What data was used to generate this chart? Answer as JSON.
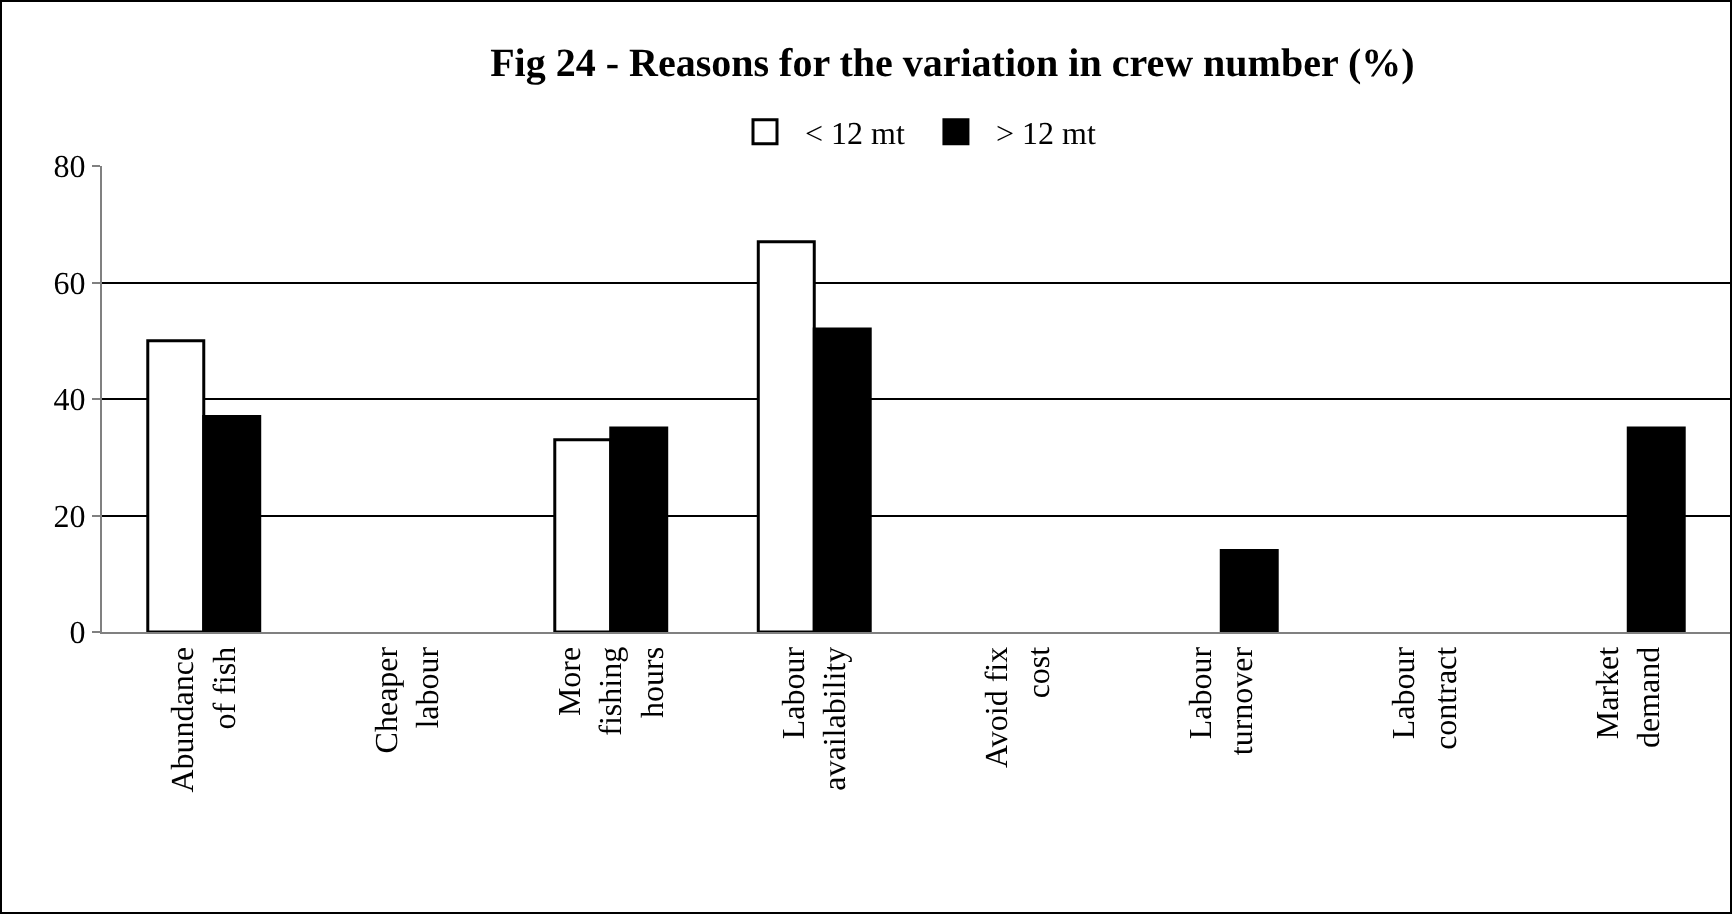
{
  "chart_data": {
    "type": "bar",
    "title": "Fig 24 - Reasons for the variation in crew number (%)",
    "categories": [
      "Abundance of fish",
      "Cheaper labour",
      "More fishing hours",
      "Labour availability",
      "Avoid fix cost",
      "Labour turnover",
      "Labour contract",
      "Market demand"
    ],
    "series": [
      {
        "name": "< 12 mt",
        "color": "#ffffff",
        "values": [
          50,
          null,
          33,
          67,
          null,
          null,
          null,
          null
        ]
      },
      {
        "name": "> 12 mt",
        "color": "#000000",
        "values": [
          37,
          null,
          35,
          52,
          null,
          14,
          null,
          35
        ]
      }
    ],
    "ylim": [
      0,
      80
    ],
    "yticks": [
      0,
      20,
      40,
      60,
      80
    ],
    "grid": "y",
    "legend": "top"
  }
}
